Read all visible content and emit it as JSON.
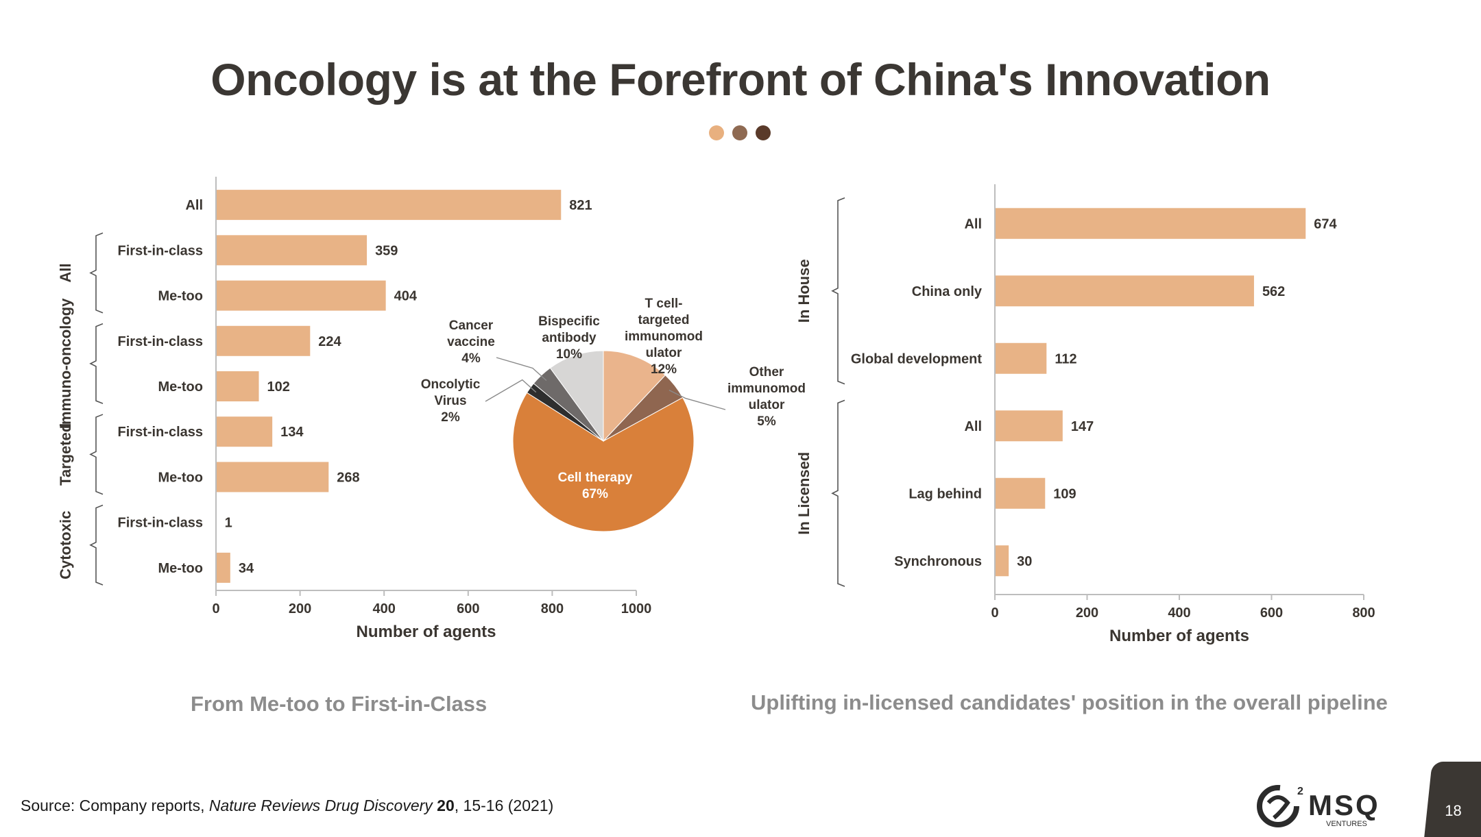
{
  "title": "Oncology is at the Forefront of China's Innovation",
  "dot_colors": [
    "#e8b07f",
    "#8f6a52",
    "#5a3a2a"
  ],
  "colors": {
    "bar": "#e8b386",
    "axis": "#bdbdbd",
    "text": "#3a3530"
  },
  "chart_data": [
    {
      "type": "bar",
      "orientation": "horizontal",
      "categories": [
        "All",
        "First-in-class",
        "Me-too",
        "First-in-class",
        "Me-too",
        "First-in-class",
        "Me-too",
        "First-in-class",
        "Me-too"
      ],
      "groups": [
        {
          "label": "All",
          "start": 1,
          "end": 2
        },
        {
          "label": "Immuno-oncology",
          "start": 3,
          "end": 4
        },
        {
          "label": "Targeted",
          "start": 5,
          "end": 6
        },
        {
          "label": "Cytotoxic",
          "start": 7,
          "end": 8
        }
      ],
      "values": [
        821,
        359,
        404,
        224,
        102,
        134,
        268,
        1,
        34
      ],
      "xlabel": "Number of agents",
      "xlim": [
        0,
        1000
      ],
      "xticks": [
        "0",
        "200",
        "400",
        "600",
        "800",
        "1000"
      ]
    },
    {
      "type": "pie",
      "slices": [
        {
          "label_lines": [
            "T cell-",
            "targeted",
            "immunomod",
            "ulator"
          ],
          "pct": "12%",
          "value": 12,
          "color": "#eab48c"
        },
        {
          "label_lines": [
            "Other",
            "immunomod",
            "ulator"
          ],
          "pct": "5%",
          "value": 5,
          "color": "#8f6650"
        },
        {
          "label_lines": [
            "Cell therapy"
          ],
          "pct": "67%",
          "value": 67,
          "color": "#d9803a"
        },
        {
          "label_lines": [
            "Oncolytic",
            "Virus"
          ],
          "pct": "2%",
          "value": 2,
          "color": "#2e2e2e"
        },
        {
          "label_lines": [
            "Cancer",
            "vaccine"
          ],
          "pct": "4%",
          "value": 4,
          "color": "#6e6a69"
        },
        {
          "label_lines": [
            "Bispecific",
            "antibody"
          ],
          "pct": "10%",
          "value": 10,
          "color": "#d7d6d5"
        }
      ]
    },
    {
      "type": "bar",
      "orientation": "horizontal",
      "categories": [
        "All",
        "China only",
        "Global development",
        "All",
        "Lag behind",
        "Synchronous"
      ],
      "groups": [
        {
          "label": "In House",
          "start": 0,
          "end": 2
        },
        {
          "label": "In Licensed",
          "start": 3,
          "end": 5
        }
      ],
      "values": [
        674,
        562,
        112,
        147,
        109,
        30
      ],
      "xlabel": "Number of agents",
      "xlim": [
        0,
        800
      ],
      "xticks": [
        "0",
        "200",
        "400",
        "600",
        "800"
      ]
    }
  ],
  "subtitles": {
    "left": "From Me-too to First-in-Class",
    "right": "Uplifting in-licensed candidates' position in the overall pipeline"
  },
  "source": {
    "prefix": "Source: Company reports, ",
    "journal": "Nature Reviews Drug Discovery",
    "volume": "20",
    "suffix": ", 15-16 (2021)"
  },
  "logo": {
    "text": "MSQ",
    "sub": "VENTURES",
    "icon": "msq-logo-mark"
  },
  "page_number": "18"
}
